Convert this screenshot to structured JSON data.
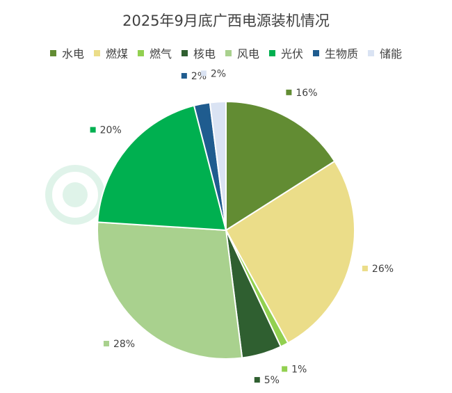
{
  "chart_data": {
    "type": "pie",
    "title": "2025年9月底广西电源装机情况",
    "legend_position": "top",
    "categories": [
      "水电",
      "燃煤",
      "燃气",
      "核电",
      "风电",
      "光伏",
      "生物质",
      "储能"
    ],
    "values": [
      16,
      26,
      1,
      5,
      28,
      20,
      2,
      2
    ],
    "value_labels": [
      "16%",
      "26%",
      "1%",
      "5%",
      "28%",
      "20%",
      "2%",
      "2%"
    ],
    "colors": [
      "#628c33",
      "#ebdd89",
      "#92d050",
      "#2f5f30",
      "#a9d18e",
      "#00b050",
      "#1f5c8f",
      "#dae3f3"
    ]
  }
}
